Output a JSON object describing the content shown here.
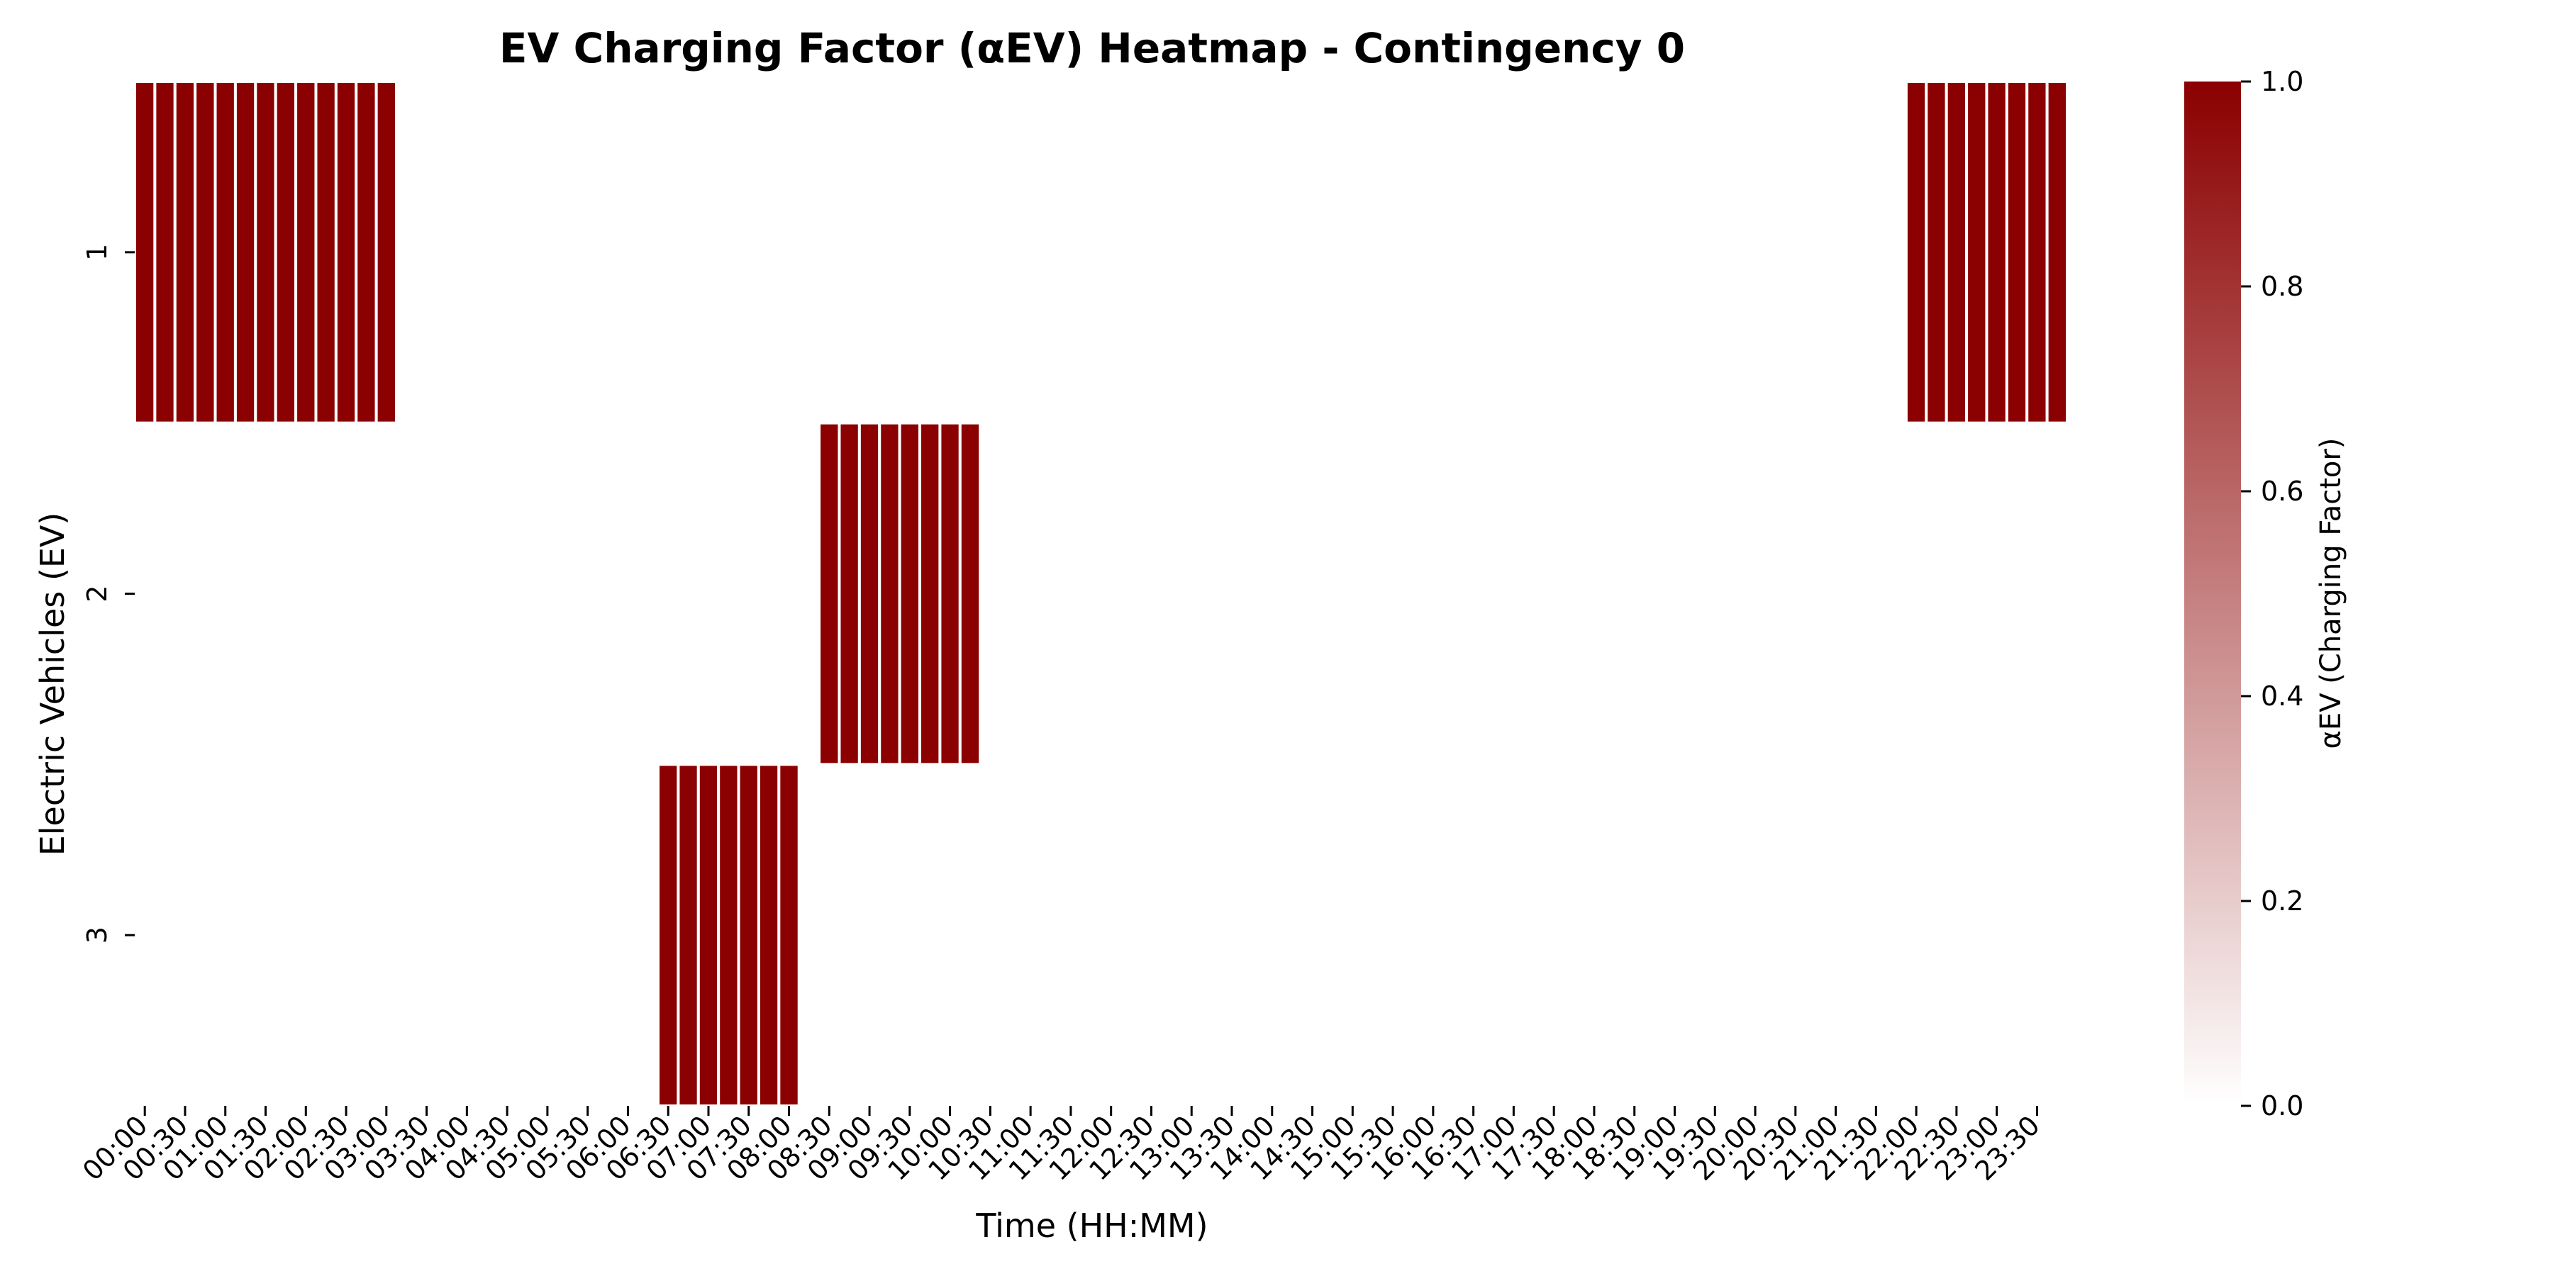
{
  "chart_data": {
    "type": "heatmap",
    "title": "EV Charging Factor (αEV) Heatmap - Contingency 0",
    "xlabel": "Time (HH:MM)",
    "ylabel": "Electric Vehicles (EV)",
    "x_tick_labels": [
      "00:00",
      "00:30",
      "01:00",
      "01:30",
      "02:00",
      "02:30",
      "03:00",
      "03:30",
      "04:00",
      "04:30",
      "05:00",
      "05:30",
      "06:00",
      "06:30",
      "07:00",
      "07:30",
      "08:00",
      "08:30",
      "09:00",
      "09:30",
      "10:00",
      "10:30",
      "11:00",
      "11:30",
      "12:00",
      "12:30",
      "13:00",
      "13:30",
      "14:00",
      "14:30",
      "15:00",
      "15:30",
      "16:00",
      "16:30",
      "17:00",
      "17:30",
      "18:00",
      "18:30",
      "19:00",
      "19:30",
      "20:00",
      "20:30",
      "21:00",
      "21:30",
      "22:00",
      "22:30",
      "23:00",
      "23:30"
    ],
    "y_tick_labels": [
      "1",
      "2",
      "3"
    ],
    "rows": [
      {
        "ev": "1",
        "values": [
          1,
          1,
          1,
          1,
          1,
          1,
          1,
          1,
          1,
          1,
          1,
          1,
          1,
          0,
          0,
          0,
          0,
          0,
          0,
          0,
          0,
          0,
          0,
          0,
          0,
          0,
          0,
          0,
          0,
          0,
          0,
          0,
          0,
          0,
          0,
          0,
          0,
          0,
          0,
          0,
          0,
          0,
          0,
          0,
          0,
          0,
          0,
          0,
          0,
          0,
          0,
          0,
          0,
          0,
          0,
          0,
          0,
          0,
          0,
          0,
          0,
          0,
          0,
          0,
          0,
          0,
          0,
          0,
          0,
          0,
          0,
          0,
          0,
          0,
          0,
          0,
          0,
          0,
          0,
          0,
          0,
          0,
          0,
          0,
          0,
          0,
          0,
          0,
          1,
          1,
          1,
          1,
          1,
          1,
          1,
          1
        ]
      },
      {
        "ev": "2",
        "values": [
          0,
          0,
          0,
          0,
          0,
          0,
          0,
          0,
          0,
          0,
          0,
          0,
          0,
          0,
          0,
          0,
          0,
          0,
          0,
          0,
          0,
          0,
          0,
          0,
          0,
          0,
          0,
          0,
          0,
          0,
          0,
          0,
          0,
          0,
          1,
          1,
          1,
          1,
          1,
          1,
          1,
          1,
          0,
          0,
          0,
          0,
          0,
          0,
          0,
          0,
          0,
          0,
          0,
          0,
          0,
          0,
          0,
          0,
          0,
          0,
          0,
          0,
          0,
          0,
          0,
          0,
          0,
          0,
          0,
          0,
          0,
          0,
          0,
          0,
          0,
          0,
          0,
          0,
          0,
          0,
          0,
          0,
          0,
          0,
          0,
          0,
          0,
          0,
          0,
          0,
          0,
          0,
          0,
          0,
          0,
          0
        ]
      },
      {
        "ev": "3",
        "values": [
          0,
          0,
          0,
          0,
          0,
          0,
          0,
          0,
          0,
          0,
          0,
          0,
          0,
          0,
          0,
          0,
          0,
          0,
          0,
          0,
          0,
          0,
          0,
          0,
          0,
          0,
          1,
          1,
          1,
          1,
          1,
          1,
          1,
          0,
          0,
          0,
          0,
          0,
          0,
          0,
          0,
          0,
          0,
          0,
          0,
          0,
          0,
          0,
          0,
          0,
          0,
          0,
          0,
          0,
          0,
          0,
          0,
          0,
          0,
          0,
          0,
          0,
          0,
          0,
          0,
          0,
          0,
          0,
          0,
          0,
          0,
          0,
          0,
          0,
          0,
          0,
          0,
          0,
          0,
          0,
          0,
          0,
          0,
          0,
          0,
          0,
          0,
          0,
          0,
          0,
          0,
          0,
          0,
          0,
          0,
          0
        ]
      }
    ],
    "colorbar": {
      "label": "αEV (Charging Factor)",
      "range": [
        0.0,
        1.0
      ],
      "tick_labels": [
        "0.0",
        "0.2",
        "0.4",
        "0.6",
        "0.8",
        "1.0"
      ],
      "colors": {
        "low": "#ffffff",
        "high": "#8b0000"
      }
    },
    "grid": false
  }
}
